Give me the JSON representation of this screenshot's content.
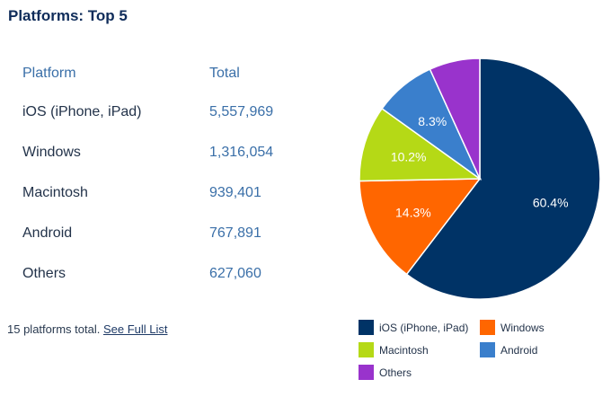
{
  "title": "Platforms: Top 5",
  "table": {
    "headers": {
      "platform": "Platform",
      "total": "Total"
    },
    "rows": [
      {
        "name": "iOS (iPhone, iPad)",
        "total": "5,557,969"
      },
      {
        "name": "Windows",
        "total": "1,316,054"
      },
      {
        "name": "Macintosh",
        "total": "939,401"
      },
      {
        "name": "Android",
        "total": "767,891"
      },
      {
        "name": "Others",
        "total": "627,060"
      }
    ]
  },
  "footer": {
    "text": "15 platforms total.",
    "link_label": "See Full List"
  },
  "chart_data": {
    "type": "pie",
    "categories": [
      "iOS (iPhone, iPad)",
      "Windows",
      "Macintosh",
      "Android",
      "Others"
    ],
    "values": [
      60.4,
      14.3,
      10.2,
      8.3,
      6.8
    ],
    "data_labels": [
      "60.4%",
      "14.3%",
      "10.2%",
      "8.3%",
      ""
    ],
    "colors": [
      "#003366",
      "#ff6600",
      "#b5d916",
      "#3a7fcc",
      "#9933cc"
    ],
    "legend_position": "bottom"
  }
}
